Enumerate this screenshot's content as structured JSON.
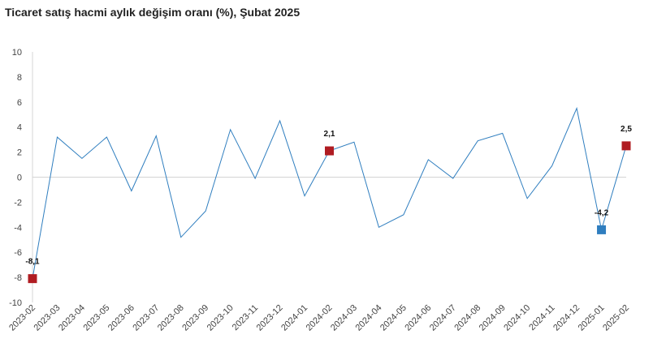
{
  "chart_data": {
    "type": "line",
    "title": "Ticaret satış hacmi aylık değişim oranı (%), Şubat 2025",
    "xlabel": "",
    "ylabel": "",
    "ylim": [
      -10,
      10
    ],
    "yticks": [
      10,
      8,
      6,
      4,
      2,
      0,
      -2,
      -4,
      -6,
      -8,
      -10
    ],
    "ytick_labels": [
      "10",
      "8",
      "6",
      "4",
      "2",
      "0",
      "-2",
      "-4",
      "-6",
      "-8",
      "-10"
    ],
    "grid": "horizontal line at 0 only",
    "categories": [
      "2023-02",
      "2023-03",
      "2023-04",
      "2023-05",
      "2023-06",
      "2023-07",
      "2023-08",
      "2023-09",
      "2023-10",
      "2023-11",
      "2023-12",
      "2024-01",
      "2024-02",
      "2024-03",
      "2024-04",
      "2024-05",
      "2024-06",
      "2024-07",
      "2024-08",
      "2024-09",
      "2024-10",
      "2024-11",
      "2024-12",
      "2025-01",
      "2025-02"
    ],
    "values": [
      -8.1,
      3.2,
      1.5,
      3.2,
      -1.1,
      3.3,
      -4.8,
      -2.7,
      3.8,
      -0.1,
      4.5,
      -1.5,
      2.1,
      2.8,
      -4.0,
      -3.0,
      1.4,
      -0.1,
      2.9,
      3.5,
      -1.7,
      0.9,
      5.5,
      -4.2,
      2.5
    ],
    "line_color": "#2f7ebf",
    "highlighted_points": [
      {
        "category": "2023-02",
        "value": -8.1,
        "label": "-8,1",
        "color": "#b01c22"
      },
      {
        "category": "2024-02",
        "value": 2.1,
        "label": "2,1",
        "color": "#b01c22"
      },
      {
        "category": "2025-01",
        "value": -4.2,
        "label": "-4,2",
        "color": "#2f7ebf"
      },
      {
        "category": "2025-02",
        "value": 2.5,
        "label": "2,5",
        "color": "#b01c22"
      }
    ]
  }
}
